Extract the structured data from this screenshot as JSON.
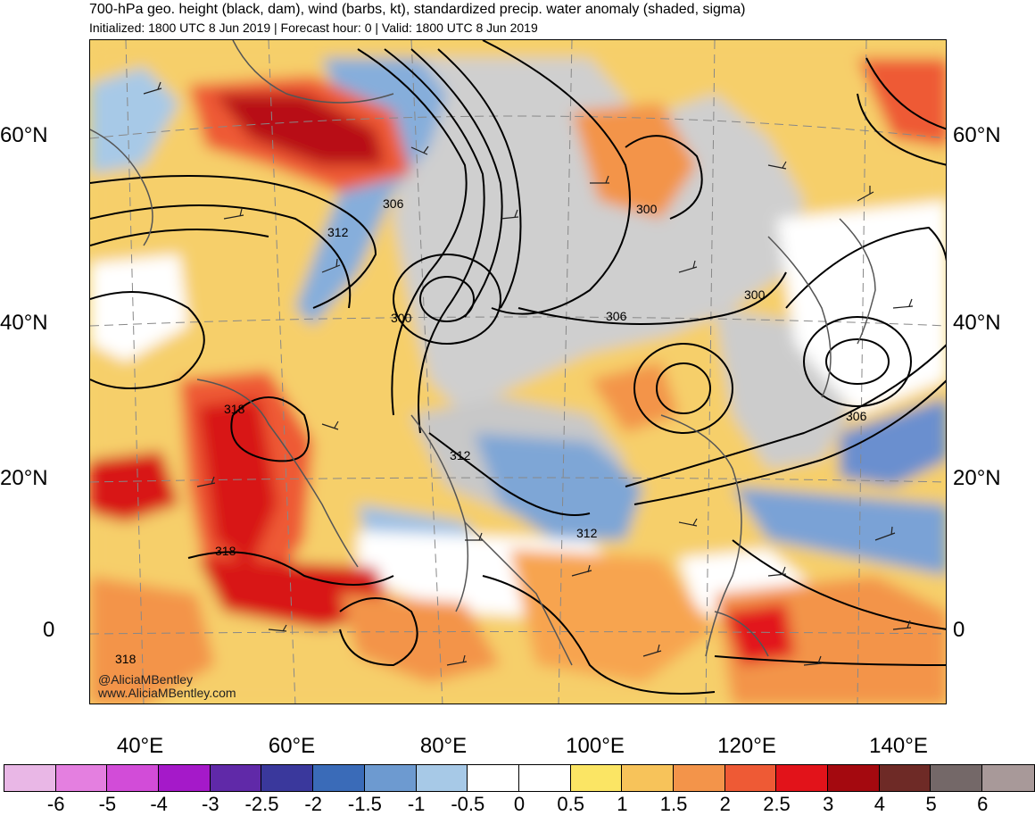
{
  "header": {
    "title": "700-hPa geo. height (black, dam), wind (barbs, kt), standardized precip. water anomaly (shaded, sigma)",
    "subtitle": "Initialized: 1800 UTC 8 Jun 2019 | Forecast hour: 0 | Valid: 1800 UTC 8 Jun 2019"
  },
  "map": {
    "latitude_labels": [
      "60°N",
      "40°N",
      "20°N",
      "0"
    ],
    "longitude_labels": [
      "40°E",
      "60°E",
      "80°E",
      "100°E",
      "120°E",
      "140°E"
    ],
    "contour_labels": [
      "306",
      "312",
      "300",
      "306",
      "300",
      "300",
      "306",
      "318",
      "312",
      "312",
      "318",
      "318"
    ],
    "credit": [
      "@AliciaMBentley",
      "www.AliciaMBentley.com"
    ],
    "colors": {
      "land_mask": "#c8c8c8",
      "contour": "#000000",
      "coastline": "#555555",
      "grid": "#888888"
    }
  },
  "colorbar": {
    "labels": [
      "-6",
      "-5",
      "-4",
      "-3",
      "-2.5",
      "-2",
      "-1.5",
      "-1",
      "-0.5",
      "0",
      "0.5",
      "1",
      "1.5",
      "2",
      "2.5",
      "3",
      "4",
      "5",
      "6"
    ],
    "colors": [
      "#e9b7e6",
      "#e47fe0",
      "#d24cd8",
      "#a519c9",
      "#6029a8",
      "#3a389c",
      "#3a6bb8",
      "#6d9ad0",
      "#a7c9e7",
      "#ffffff",
      "#ffffff",
      "#fbe564",
      "#f7c35a",
      "#f3944a",
      "#ee5a35",
      "#e2131a",
      "#a4090f",
      "#6e2a26",
      "#746868",
      "#a89999"
    ]
  }
}
